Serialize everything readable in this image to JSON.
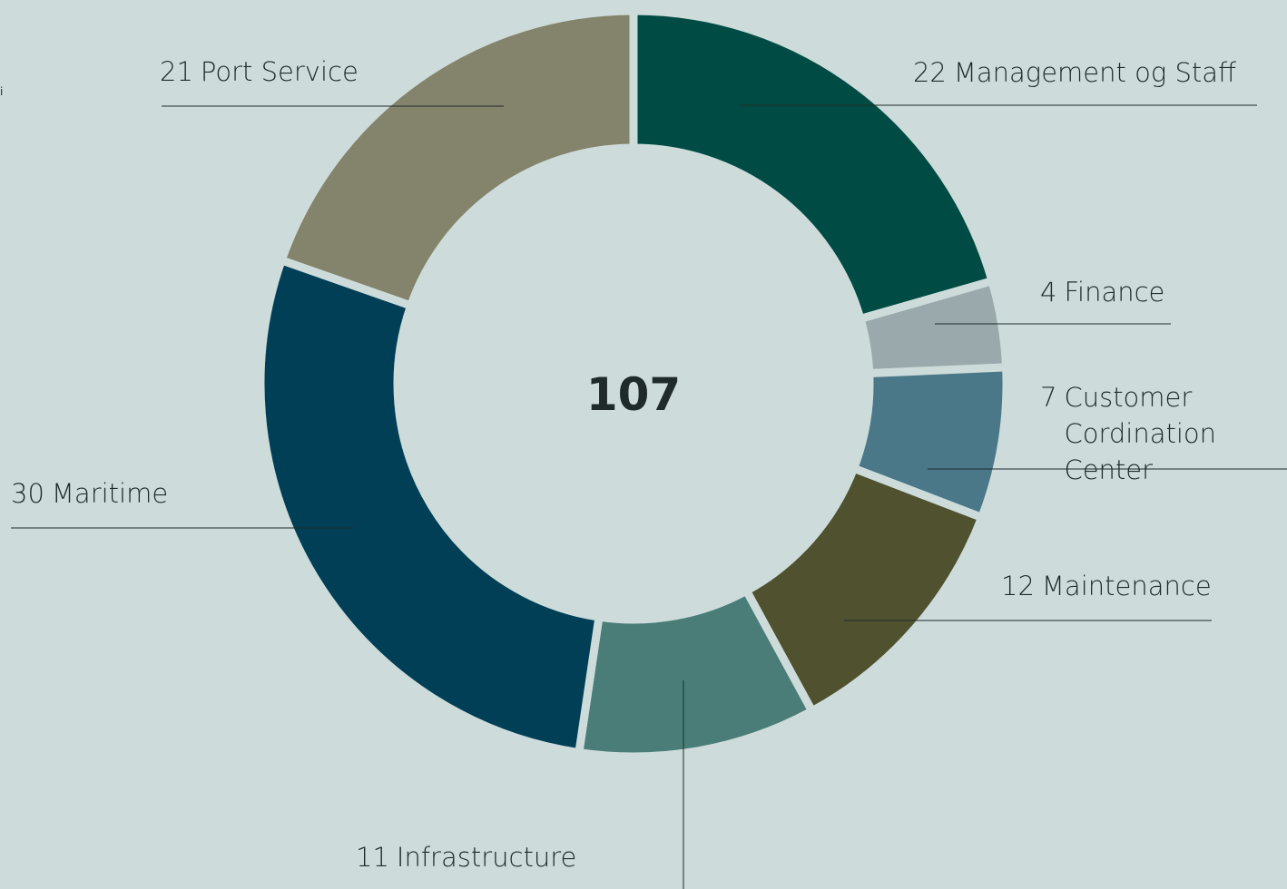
{
  "chart_data": {
    "type": "donut",
    "total": 107,
    "info_marker": "i",
    "categories": [
      "Management og Staff",
      "Finance",
      "Customer Cordination Center",
      "Maintenance",
      "Infrastructure",
      "Maritime",
      "Port Service"
    ],
    "values": [
      22,
      4,
      7,
      12,
      11,
      30,
      21
    ],
    "colors": [
      "#004b43",
      "#9aa9ac",
      "#4b7889",
      "#4f512f",
      "#4a7d77",
      "#003f56",
      "#84836b"
    ],
    "background": "#cddcdb"
  }
}
